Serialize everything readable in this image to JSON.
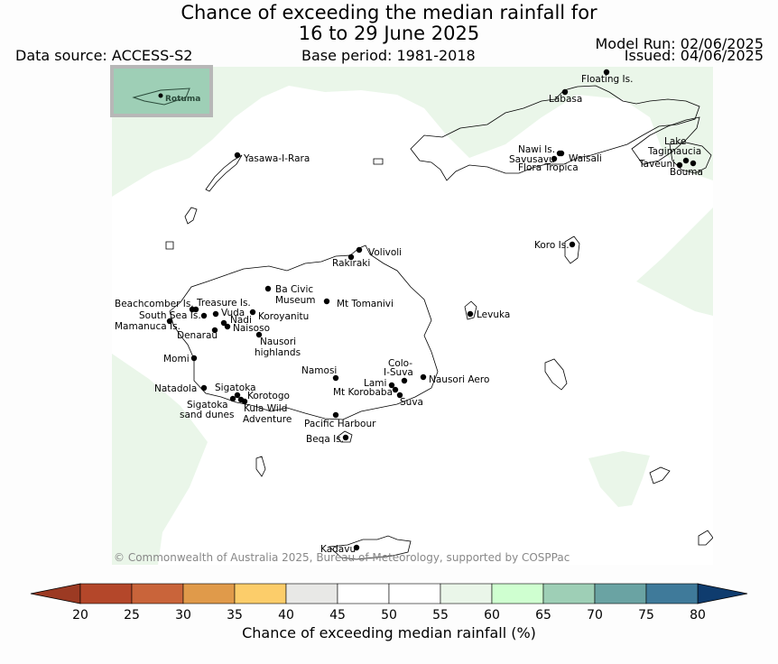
{
  "title": {
    "line1": "Chance of exceeding the median rainfall for",
    "line2": "16 to 29 June 2025"
  },
  "meta": {
    "data_source": "Data source: ACCESS-S2",
    "base_period": "Base period: 1981-2018",
    "model_run": "Model Run: 02/06/2025",
    "issued": "Issued: 04/06/2025"
  },
  "inset": {
    "label": "Rotuma"
  },
  "copyright": "© Commonwealth of Australia 2025, Bureau of Meteorology, supported by COSPPac",
  "colorbar": {
    "title": "Chance of exceeding median rainfall (%)",
    "ticks": [
      "20",
      "25",
      "30",
      "35",
      "40",
      "45",
      "50",
      "55",
      "60",
      "65",
      "70",
      "75",
      "80"
    ],
    "colors": [
      "#b4472a",
      "#c9643a",
      "#e09a4a",
      "#fccd6a",
      "#e8e8e6",
      "#ffffff",
      "#ffffff",
      "#eaf6e9",
      "#cfffd0",
      "#9ecfb6",
      "#6aa3a3",
      "#3f7a9a",
      "#1e4f82"
    ],
    "under_color": "#9c3a23",
    "over_color": "#0f3c6e"
  },
  "places": [
    {
      "name": "Floating Is."
    },
    {
      "name": "Labasa"
    },
    {
      "name": "Nawi Is."
    },
    {
      "name": "Savusavu"
    },
    {
      "name": "Waisali"
    },
    {
      "name": "Flora Tropica"
    },
    {
      "name": "Lake"
    },
    {
      "name": "Tagimaucia"
    },
    {
      "name": "Taveuni"
    },
    {
      "name": "Bouma"
    },
    {
      "name": "Yasawa-I-Rara"
    },
    {
      "name": "Koro Is."
    },
    {
      "name": "Volivoli"
    },
    {
      "name": "Rakiraki"
    },
    {
      "name": "Ba Civic"
    },
    {
      "name": "Museum"
    },
    {
      "name": "Mt Tomanivi"
    },
    {
      "name": "Beachcomber Is."
    },
    {
      "name": "Treasure Is."
    },
    {
      "name": "South Sea Is."
    },
    {
      "name": "Vuda"
    },
    {
      "name": "Koroyanitu"
    },
    {
      "name": "Mamanuca Is."
    },
    {
      "name": "Nadi"
    },
    {
      "name": "Naisoso"
    },
    {
      "name": "Denarau"
    },
    {
      "name": "Levuka"
    },
    {
      "name": "Nausori"
    },
    {
      "name": "highlands"
    },
    {
      "name": "Momi"
    },
    {
      "name": "Colo-"
    },
    {
      "name": "I-Suva"
    },
    {
      "name": "Namosi"
    },
    {
      "name": "Lami"
    },
    {
      "name": "Nausori Aero"
    },
    {
      "name": "Mt Korobaba"
    },
    {
      "name": "Natadola"
    },
    {
      "name": "Sigatoka"
    },
    {
      "name": "Korotogo"
    },
    {
      "name": "Suva"
    },
    {
      "name": "Sigatoka"
    },
    {
      "name": "sand dunes"
    },
    {
      "name": "Kula Wild"
    },
    {
      "name": "Adventure"
    },
    {
      "name": "Pacific Harbour"
    },
    {
      "name": "Beqa Is."
    },
    {
      "name": "Kadavu"
    }
  ]
}
